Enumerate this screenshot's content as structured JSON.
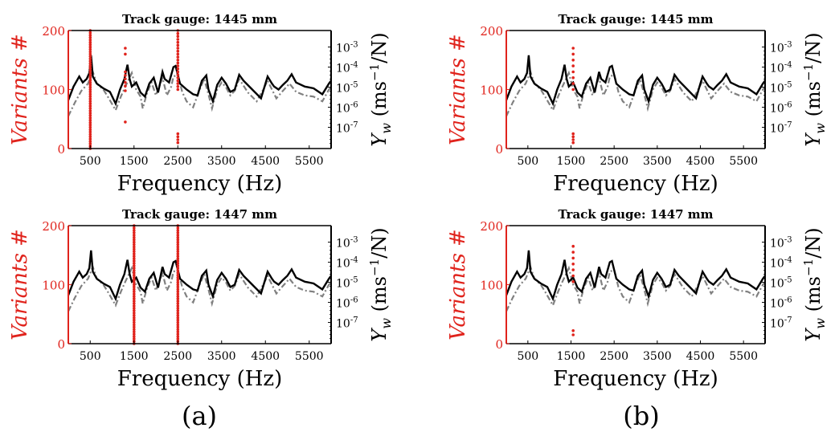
{
  "figure": {
    "panel_labels": [
      "(a)",
      "(b)"
    ]
  },
  "colors": {
    "variants": "#e0231c",
    "solid": "#000000",
    "dashed": "#808080"
  },
  "chart_data": [
    {
      "type": "line",
      "title": "Track gauge: 1445 mm",
      "xlabel": "Frequency (Hz)",
      "ylabel_left": "Variants #",
      "ylabel_right": "Y_w (ms^-1/N)",
      "xticks": [
        500,
        1500,
        2500,
        3500,
        4500,
        5500
      ],
      "xlim": [
        0,
        6000
      ],
      "yticks_left": [
        0,
        100,
        200
      ],
      "ylim_left": [
        0,
        200
      ],
      "yticks_right": [
        "10^-3",
        "10^-4",
        "10^-5",
        "10^-6",
        "10^-7"
      ],
      "variants": [
        {
          "freq": 500,
          "counts": [
            0,
            4,
            8,
            12,
            16,
            20,
            24,
            28,
            32,
            36,
            40,
            44,
            48,
            52,
            56,
            60,
            64,
            68,
            72,
            76,
            80,
            84,
            88,
            92,
            96,
            100,
            104,
            108,
            112,
            116,
            120,
            124,
            128,
            132,
            136,
            140,
            144,
            148,
            152,
            156,
            160,
            164,
            168,
            172,
            176,
            180,
            184,
            188,
            192,
            196,
            200
          ]
        },
        {
          "freq": 1300,
          "counts": [
            45,
            98,
            106,
            112,
            118,
            124,
            130,
            160,
            170
          ]
        },
        {
          "freq": 2500,
          "counts": [
            10,
            15,
            20,
            25,
            100,
            105,
            110,
            115,
            120,
            125,
            130,
            135,
            140,
            145,
            150,
            155,
            160,
            165,
            170,
            175,
            180,
            185,
            190,
            195,
            200
          ]
        }
      ]
    },
    {
      "type": "line",
      "title": "Track gauge: 1445 mm",
      "xlabel": "Frequency (Hz)",
      "ylabel_left": "Variants #",
      "ylabel_right": "Y_w (ms^-1/N)",
      "xticks": [
        500,
        1500,
        2500,
        3500,
        4500,
        5500
      ],
      "xlim": [
        0,
        6000
      ],
      "yticks_left": [
        0,
        100,
        200
      ],
      "ylim_left": [
        0,
        200
      ],
      "yticks_right": [
        "10^-3",
        "10^-4",
        "10^-5",
        "10^-6",
        "10^-7"
      ],
      "variants": [
        {
          "freq": 1550,
          "counts": [
            10,
            15,
            20,
            25,
            100,
            110,
            120,
            130,
            140,
            150,
            160,
            170
          ]
        }
      ]
    },
    {
      "type": "line",
      "title": "Track gauge: 1447 mm",
      "xlabel": "Frequency (Hz)",
      "ylabel_left": "Variants #",
      "ylabel_right": "Y_w (ms^-1/N)",
      "xticks": [
        500,
        1500,
        2500,
        3500,
        4500,
        5500
      ],
      "xlim": [
        0,
        6000
      ],
      "yticks_left": [
        0,
        100,
        200
      ],
      "ylim_left": [
        0,
        200
      ],
      "yticks_right": [
        "10^-3",
        "10^-4",
        "10^-5",
        "10^-6",
        "10^-7"
      ],
      "variants": [
        {
          "freq": 1500,
          "counts": [
            0,
            4,
            8,
            12,
            16,
            20,
            24,
            28,
            32,
            36,
            40,
            44,
            48,
            52,
            56,
            60,
            64,
            68,
            72,
            76,
            80,
            84,
            88,
            92,
            96,
            100,
            104,
            108,
            112,
            116,
            120,
            124,
            128,
            132,
            136,
            140,
            144,
            148,
            152,
            156,
            160,
            164,
            168,
            172,
            176,
            180,
            184,
            188,
            192,
            196,
            200
          ]
        },
        {
          "freq": 2500,
          "counts": [
            0,
            4,
            8,
            12,
            16,
            20,
            24,
            28,
            32,
            36,
            40,
            44,
            48,
            52,
            56,
            60,
            64,
            68,
            72,
            76,
            80,
            84,
            88,
            92,
            96,
            100,
            104,
            108,
            112,
            116,
            120,
            124,
            128,
            132,
            136,
            140,
            144,
            148,
            152,
            156,
            160,
            164,
            168,
            172,
            176,
            180,
            184,
            188,
            192,
            196,
            200
          ]
        }
      ]
    },
    {
      "type": "line",
      "title": "Track gauge: 1447 mm",
      "xlabel": "Frequency (Hz)",
      "ylabel_left": "Variants #",
      "ylabel_right": "Y_w (ms^-1/N)",
      "xticks": [
        500,
        1500,
        2500,
        3500,
        4500,
        5500
      ],
      "xlim": [
        0,
        6000
      ],
      "yticks_left": [
        0,
        100,
        200
      ],
      "ylim_left": [
        0,
        200
      ],
      "yticks_right": [
        "10^-3",
        "10^-4",
        "10^-5",
        "10^-6",
        "10^-7"
      ],
      "variants": [
        {
          "freq": 1550,
          "counts": [
            15,
            22,
            105,
            115,
            125,
            135,
            145,
            155,
            165
          ]
        }
      ]
    }
  ],
  "response_curves": {
    "solid": [
      [
        0,
        82
      ],
      [
        120,
        105
      ],
      [
        250,
        122
      ],
      [
        330,
        112
      ],
      [
        420,
        118
      ],
      [
        480,
        128
      ],
      [
        520,
        158
      ],
      [
        560,
        122
      ],
      [
        650,
        110
      ],
      [
        800,
        102
      ],
      [
        950,
        96
      ],
      [
        1080,
        76
      ],
      [
        1180,
        100
      ],
      [
        1280,
        118
      ],
      [
        1350,
        142
      ],
      [
        1400,
        118
      ],
      [
        1450,
        105
      ],
      [
        1550,
        112
      ],
      [
        1650,
        95
      ],
      [
        1750,
        88
      ],
      [
        1850,
        110
      ],
      [
        1950,
        120
      ],
      [
        2050,
        95
      ],
      [
        2150,
        130
      ],
      [
        2200,
        118
      ],
      [
        2300,
        112
      ],
      [
        2400,
        138
      ],
      [
        2450,
        140
      ],
      [
        2550,
        110
      ],
      [
        2700,
        100
      ],
      [
        2850,
        92
      ],
      [
        2950,
        90
      ],
      [
        3050,
        115
      ],
      [
        3150,
        124
      ],
      [
        3200,
        100
      ],
      [
        3300,
        80
      ],
      [
        3400,
        108
      ],
      [
        3500,
        120
      ],
      [
        3600,
        110
      ],
      [
        3700,
        96
      ],
      [
        3800,
        100
      ],
      [
        3900,
        125
      ],
      [
        4000,
        115
      ],
      [
        4200,
        100
      ],
      [
        4400,
        85
      ],
      [
        4500,
        110
      ],
      [
        4550,
        122
      ],
      [
        4650,
        110
      ],
      [
        4700,
        105
      ],
      [
        4800,
        100
      ],
      [
        4900,
        108
      ],
      [
        5000,
        115
      ],
      [
        5100,
        126
      ],
      [
        5200,
        112
      ],
      [
        5400,
        105
      ],
      [
        5600,
        102
      ],
      [
        5800,
        92
      ],
      [
        5950,
        110
      ],
      [
        6000,
        115
      ]
    ],
    "dashed": [
      [
        0,
        55
      ],
      [
        150,
        78
      ],
      [
        300,
        98
      ],
      [
        450,
        110
      ],
      [
        560,
        130
      ],
      [
        650,
        110
      ],
      [
        800,
        100
      ],
      [
        900,
        88
      ],
      [
        1080,
        65
      ],
      [
        1200,
        88
      ],
      [
        1300,
        105
      ],
      [
        1400,
        120
      ],
      [
        1450,
        128
      ],
      [
        1550,
        100
      ],
      [
        1650,
        88
      ],
      [
        1700,
        68
      ],
      [
        1800,
        95
      ],
      [
        1900,
        112
      ],
      [
        2000,
        90
      ],
      [
        2150,
        120
      ],
      [
        2250,
        90
      ],
      [
        2350,
        105
      ],
      [
        2400,
        122
      ],
      [
        2500,
        125
      ],
      [
        2600,
        96
      ],
      [
        2700,
        80
      ],
      [
        2850,
        70
      ],
      [
        3000,
        100
      ],
      [
        3100,
        118
      ],
      [
        3200,
        92
      ],
      [
        3280,
        68
      ],
      [
        3400,
        100
      ],
      [
        3500,
        112
      ],
      [
        3600,
        104
      ],
      [
        3700,
        90
      ],
      [
        3800,
        98
      ],
      [
        3900,
        118
      ],
      [
        4100,
        95
      ],
      [
        4300,
        80
      ],
      [
        4450,
        100
      ],
      [
        4550,
        115
      ],
      [
        4650,
        100
      ],
      [
        4750,
        85
      ],
      [
        4900,
        98
      ],
      [
        5050,
        110
      ],
      [
        5200,
        96
      ],
      [
        5400,
        90
      ],
      [
        5600,
        88
      ],
      [
        5800,
        80
      ],
      [
        5950,
        100
      ],
      [
        6000,
        104
      ]
    ]
  }
}
